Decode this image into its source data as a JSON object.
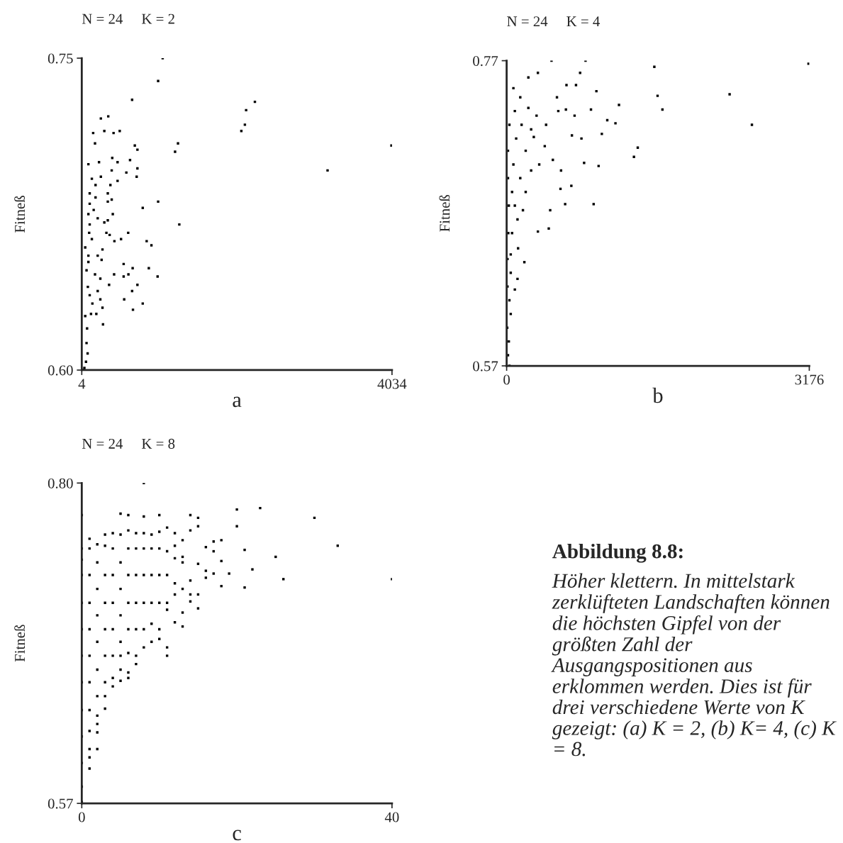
{
  "chart_data": [
    {
      "type": "scatter",
      "title": "N = 24     K = 2",
      "xlabel": "a",
      "ylabel": "Fitneß",
      "marker": "square",
      "xlim": [
        4,
        4034
      ],
      "xticks": [
        4,
        4034
      ],
      "ylim": [
        0.6,
        0.75
      ],
      "yticks": [
        {
          "value": 0.6,
          "label": "0.60"
        },
        0.75
      ],
      "series": [
        {
          "color": "#000000",
          "x": [
            1055,
            996,
            658,
            2253,
            2139,
            348,
            252,
            2123,
            297,
            497,
            417,
            2077,
            152,
            176,
            1254,
            1216,
            4027,
            693,
            727,
            400,
            631,
            228,
            469,
            90,
            727,
            393,
            583,
            3197,
            717,
            252,
            469,
            135,
            183,
            376,
            107,
            342,
            183,
            393,
            342,
            996,
            796,
            107,
            159,
            90,
            407,
            211,
            297,
            342,
            1271,
            107,
            607,
            100,
            324,
            366,
            428,
            514,
            135,
            847,
            909,
            49,
            273,
            90,
            211,
            262,
            90,
            548,
            875,
            665,
            66,
            424,
            176,
            548,
            610,
            989,
            245,
            359,
            83,
            727,
            658,
            211,
            107,
            245,
            555,
            796,
            142,
            273,
            669,
            124,
            193,
            49,
            280,
            73,
            66,
            80,
            59,
            38,
            25
          ],
          "values": [
            0.75,
            0.739,
            0.73,
            0.729,
            0.725,
            0.722,
            0.721,
            0.718,
            0.715,
            0.715,
            0.714,
            0.715,
            0.714,
            0.709,
            0.709,
            0.705,
            0.708,
            0.708,
            0.706,
            0.702,
            0.701,
            0.7,
            0.7,
            0.699,
            0.697,
            0.696,
            0.695,
            0.696,
            0.693,
            0.693,
            0.691,
            0.692,
            0.689,
            0.689,
            0.685,
            0.685,
            0.683,
            0.682,
            0.681,
            0.681,
            0.678,
            0.68,
            0.677,
            0.675,
            0.675,
            0.673,
            0.671,
            0.672,
            0.67,
            0.67,
            0.666,
            0.666,
            0.666,
            0.665,
            0.662,
            0.663,
            0.663,
            0.662,
            0.66,
            0.659,
            0.658,
            0.655,
            0.655,
            0.653,
            0.652,
            0.651,
            0.649,
            0.649,
            0.648,
            0.646,
            0.646,
            0.645,
            0.646,
            0.645,
            0.644,
            0.641,
            0.64,
            0.641,
            0.638,
            0.638,
            0.636,
            0.634,
            0.634,
            0.632,
            0.632,
            0.63,
            0.629,
            0.627,
            0.627,
            0.626,
            0.622,
            0.62,
            0.613,
            0.608,
            0.604,
            0.601,
            0.6
          ]
        }
      ]
    },
    {
      "type": "scatter",
      "title": "N = 24     K = 4",
      "xlabel": "b",
      "ylabel": "Fitneß",
      "marker": "square",
      "xlim": [
        0,
        3176
      ],
      "xticks": [
        0,
        3176
      ],
      "ylim": [
        0.57,
        0.77
      ],
      "yticks": [
        0.57,
        0.77
      ],
      "series": [
        {
          "color": "#000000",
          "x": [
            3168,
            1550,
            471,
            828,
            2340,
            1584,
            1635,
            2574,
            1179,
            1376,
            1336,
            913,
            614,
            442,
            965,
            999,
            1142,
            1056,
            885,
            942,
            728,
            771,
            328,
            228,
            628,
            528,
            785,
            685,
            813,
            679,
            565,
            457,
            328,
            186,
            114,
            86,
            43,
            23,
            14,
            29,
            57,
            86,
            143,
            200,
            257,
            314,
            86,
            71,
            143,
            228,
            285,
            342,
            200,
            114,
            43,
            43,
            29,
            120,
            171,
            257,
            400,
            485,
            571,
            414,
            542,
            622,
            713,
            29,
            14,
            14,
            23,
            17,
            9,
            9,
            6,
            71,
            100,
            157,
            57
          ],
          "values": [
            0.768,
            0.766,
            0.77,
            0.77,
            0.748,
            0.747,
            0.738,
            0.728,
            0.741,
            0.713,
            0.707,
            0.676,
            0.676,
            0.66,
            0.701,
            0.722,
            0.729,
            0.731,
            0.738,
            0.75,
            0.754,
            0.762,
            0.762,
            0.759,
            0.754,
            0.746,
            0.719,
            0.721,
            0.703,
            0.688,
            0.686,
            0.672,
            0.658,
            0.638,
            0.627,
            0.62,
            0.604,
            0.586,
            0.577,
            0.57,
            0.657,
            0.675,
            0.693,
            0.711,
            0.725,
            0.734,
            0.737,
            0.752,
            0.746,
            0.739,
            0.72,
            0.702,
            0.684,
            0.666,
            0.643,
            0.631,
            0.613,
            0.647,
            0.672,
            0.698,
            0.714,
            0.705,
            0.698,
            0.728,
            0.737,
            0.738,
            0.734,
            0.728,
            0.711,
            0.693,
            0.675,
            0.657,
            0.64,
            0.622,
            0.595,
            0.702,
            0.719,
            0.728,
            0.684
          ]
        }
      ]
    },
    {
      "type": "scatter",
      "title": "N = 24     K = 8",
      "xlabel": "c",
      "ylabel": "Fitneß",
      "marker": "square",
      "xlim": [
        0,
        40
      ],
      "xticks": [
        0,
        40
      ],
      "ylim": [
        0.57,
        0.8
      ],
      "yticks": [
        0.57,
        {
          "value": 0.8,
          "label": "0.80"
        }
      ],
      "annotations": [
        "Abbildung 8.8:",
        "Höher klettern. In mittelstark zerklüfteten Landschaften können die höchsten Gipfel von der größten Zahl der Ausgangspositionen aus erklommen werden. Dies ist für drei verschiedene Werte von K gezeigt: (a) K = 2, (b) K= 4, (c) K = 8."
      ],
      "series": [
        {
          "color": "#000000",
          "x": [
            0,
            0,
            0,
            0,
            0,
            0,
            0,
            0,
            0,
            0,
            0,
            0,
            0,
            1,
            1,
            1,
            1,
            1,
            1,
            1,
            1,
            1,
            1,
            1,
            1,
            2,
            2,
            2,
            2,
            2,
            2,
            2,
            2,
            2,
            2,
            2,
            3,
            3,
            3,
            3,
            3,
            3,
            3,
            3,
            3,
            4,
            4,
            4,
            4,
            4,
            4,
            4,
            4,
            5,
            5,
            5,
            5,
            5,
            5,
            5,
            5,
            5,
            6,
            6,
            6,
            6,
            6,
            6,
            6,
            6,
            6,
            7,
            7,
            7,
            7,
            7,
            7,
            7,
            8,
            8,
            8,
            8,
            8,
            8,
            8,
            8,
            9,
            9,
            9,
            9,
            9,
            9,
            10,
            10,
            10,
            10,
            10,
            10,
            10,
            11,
            11,
            11,
            11,
            11,
            11,
            11,
            12,
            12,
            12,
            12,
            12,
            12,
            13,
            13,
            13,
            13,
            13,
            13,
            14,
            14,
            14,
            14,
            14,
            15,
            15,
            15,
            15,
            15,
            16,
            16,
            16,
            17,
            17,
            17,
            18,
            18,
            18,
            19,
            20,
            20,
            21,
            21,
            22,
            23,
            25,
            26,
            30,
            33,
            40
          ],
          "values": [
            0.777,
            0.753,
            0.745,
            0.734,
            0.714,
            0.695,
            0.676,
            0.657,
            0.637,
            0.618,
            0.599,
            0.582,
            0.571,
            0.76,
            0.753,
            0.734,
            0.714,
            0.695,
            0.676,
            0.657,
            0.637,
            0.622,
            0.609,
            0.603,
            0.595,
            0.756,
            0.743,
            0.724,
            0.705,
            0.686,
            0.666,
            0.647,
            0.633,
            0.627,
            0.621,
            0.609,
            0.763,
            0.755,
            0.734,
            0.714,
            0.695,
            0.676,
            0.657,
            0.647,
            0.638,
            0.764,
            0.753,
            0.734,
            0.714,
            0.695,
            0.676,
            0.66,
            0.654,
            0.778,
            0.763,
            0.743,
            0.724,
            0.705,
            0.686,
            0.676,
            0.666,
            0.658,
            0.777,
            0.766,
            0.753,
            0.734,
            0.714,
            0.695,
            0.678,
            0.664,
            0.66,
            0.764,
            0.753,
            0.734,
            0.714,
            0.695,
            0.676,
            0.67,
            0.8,
            0.776,
            0.764,
            0.753,
            0.734,
            0.714,
            0.695,
            0.682,
            0.763,
            0.753,
            0.734,
            0.714,
            0.699,
            0.686,
            0.777,
            0.765,
            0.753,
            0.734,
            0.714,
            0.695,
            0.688,
            0.768,
            0.751,
            0.734,
            0.714,
            0.709,
            0.682,
            0.676,
            0.764,
            0.755,
            0.746,
            0.728,
            0.72,
            0.7,
            0.759,
            0.747,
            0.743,
            0.724,
            0.707,
            0.697,
            0.777,
            0.766,
            0.73,
            0.72,
            0.715,
            0.775,
            0.769,
            0.742,
            0.72,
            0.71,
            0.754,
            0.737,
            0.732,
            0.758,
            0.751,
            0.735,
            0.759,
            0.744,
            0.726,
            0.735,
            0.781,
            0.769,
            0.752,
            0.725,
            0.738,
            0.782,
            0.747,
            0.731,
            0.775,
            0.755,
            0.731
          ]
        }
      ]
    }
  ]
}
